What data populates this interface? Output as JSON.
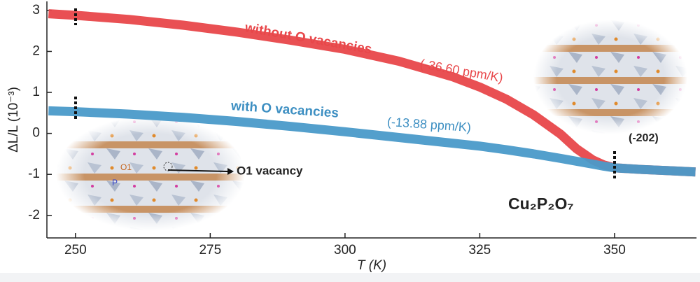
{
  "chart_data": {
    "type": "line",
    "x_label": "T (K)",
    "y_label": "ΔL/L (10⁻³)",
    "x": [
      245,
      250,
      260,
      270,
      280,
      290,
      300,
      310,
      320,
      325,
      330,
      335,
      340,
      343,
      346,
      348,
      350,
      355,
      360,
      365
    ],
    "series": [
      {
        "name": "without O vacancies",
        "color": "#e8474a",
        "values": [
          2.92,
          2.88,
          2.78,
          2.64,
          2.47,
          2.27,
          2.05,
          1.76,
          1.38,
          1.13,
          0.83,
          0.45,
          -0.02,
          -0.38,
          -0.65,
          -0.77,
          -0.84,
          -0.88,
          -0.91,
          -0.94
        ]
      },
      {
        "name": "with O vacancies",
        "color": "#4a9ac9",
        "values": [
          0.55,
          0.53,
          0.47,
          0.39,
          0.29,
          0.17,
          0.04,
          -0.1,
          -0.24,
          -0.31,
          -0.4,
          -0.5,
          -0.61,
          -0.68,
          -0.75,
          -0.8,
          -0.84,
          -0.88,
          -0.91,
          -0.94
        ]
      }
    ],
    "xlim": [
      244.7,
      365.2
    ],
    "ylim": [
      -2.55,
      3.22
    ],
    "xticks": [
      250,
      275,
      300,
      325,
      350
    ],
    "yticks": [
      -2,
      -1,
      0,
      1,
      2,
      3
    ],
    "annotations": {
      "without_rate": "(-36.60 ppm/K)",
      "with_rate": "(-13.88 ppm/K)",
      "plane": "(-202)",
      "vacancy": "O1 vacancy",
      "site_o1": "O1",
      "site_p": "P",
      "compound": "Cu₂P₂O₇"
    }
  }
}
